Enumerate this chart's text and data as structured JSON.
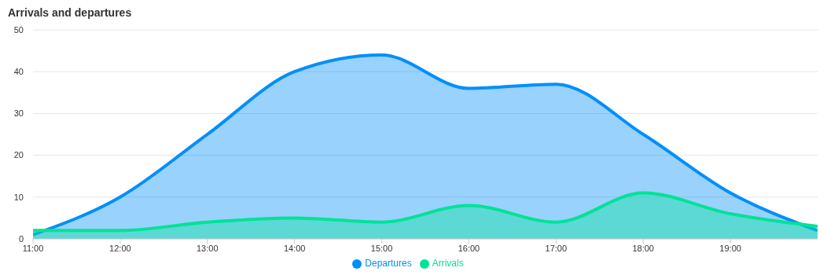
{
  "chart_data": {
    "type": "area",
    "title": "Arrivals and departures",
    "x": [
      11,
      12,
      13,
      14,
      15,
      16,
      17,
      18,
      19,
      20
    ],
    "series": [
      {
        "name": "Departures",
        "color": "#008ffb",
        "values": [
          1,
          10,
          25,
          40,
          44,
          36,
          37,
          25,
          11,
          2
        ]
      },
      {
        "name": "Arrivals",
        "color": "#00e396",
        "values": [
          2,
          2,
          4,
          5,
          4,
          8,
          4,
          11,
          6,
          3
        ]
      }
    ],
    "xlim": [
      11,
      20
    ],
    "xticks": [
      {
        "value": 11,
        "label": "11:00"
      },
      {
        "value": 12,
        "label": "12:00"
      },
      {
        "value": 13,
        "label": "13:00"
      },
      {
        "value": 14,
        "label": "14:00"
      },
      {
        "value": 15,
        "label": "15:00"
      },
      {
        "value": 16,
        "label": "16:00"
      },
      {
        "value": 17,
        "label": "17:00"
      },
      {
        "value": 18,
        "label": "18:00"
      },
      {
        "value": 19,
        "label": "19:00"
      }
    ],
    "ylim": [
      0,
      50
    ],
    "yticks": [
      0,
      10,
      20,
      30,
      40,
      50
    ],
    "grid": "y",
    "legend": "bottom",
    "line_style": "solid"
  }
}
